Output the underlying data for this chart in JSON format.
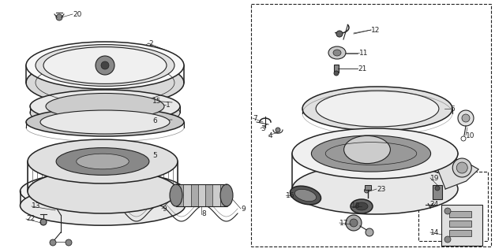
{
  "bg_color": "#ffffff",
  "line_color": "#222222",
  "fig_width": 6.27,
  "fig_height": 3.2,
  "dpi": 100
}
